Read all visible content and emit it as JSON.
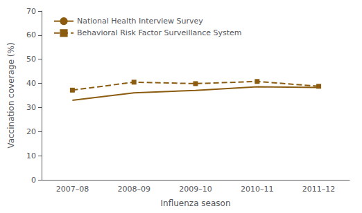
{
  "chart_data": {
    "type": "line",
    "categories": [
      "2007–08",
      "2008–09",
      "2009–10",
      "2010–11",
      "2011–12"
    ],
    "series": [
      {
        "name": "National Health Interview Survey",
        "color": "#8B5C10",
        "values": [
          33.0,
          36.1,
          37.1,
          38.6,
          38.3
        ],
        "line_style": "solid",
        "marker": "none"
      },
      {
        "name": "Behavioral Risk Factor Surveillance System",
        "color": "#8B5C10",
        "values": [
          37.2,
          40.5,
          39.9,
          40.8,
          38.8
        ],
        "line_style": "dashed",
        "marker": "square"
      }
    ],
    "xlabel": "Influenza season",
    "ylabel": "Vaccination coverage (%)",
    "ylim": [
      0,
      70
    ],
    "yticks": [
      0,
      10,
      20,
      30,
      40,
      50,
      60,
      70
    ],
    "grid": false,
    "legend": "upper left"
  }
}
